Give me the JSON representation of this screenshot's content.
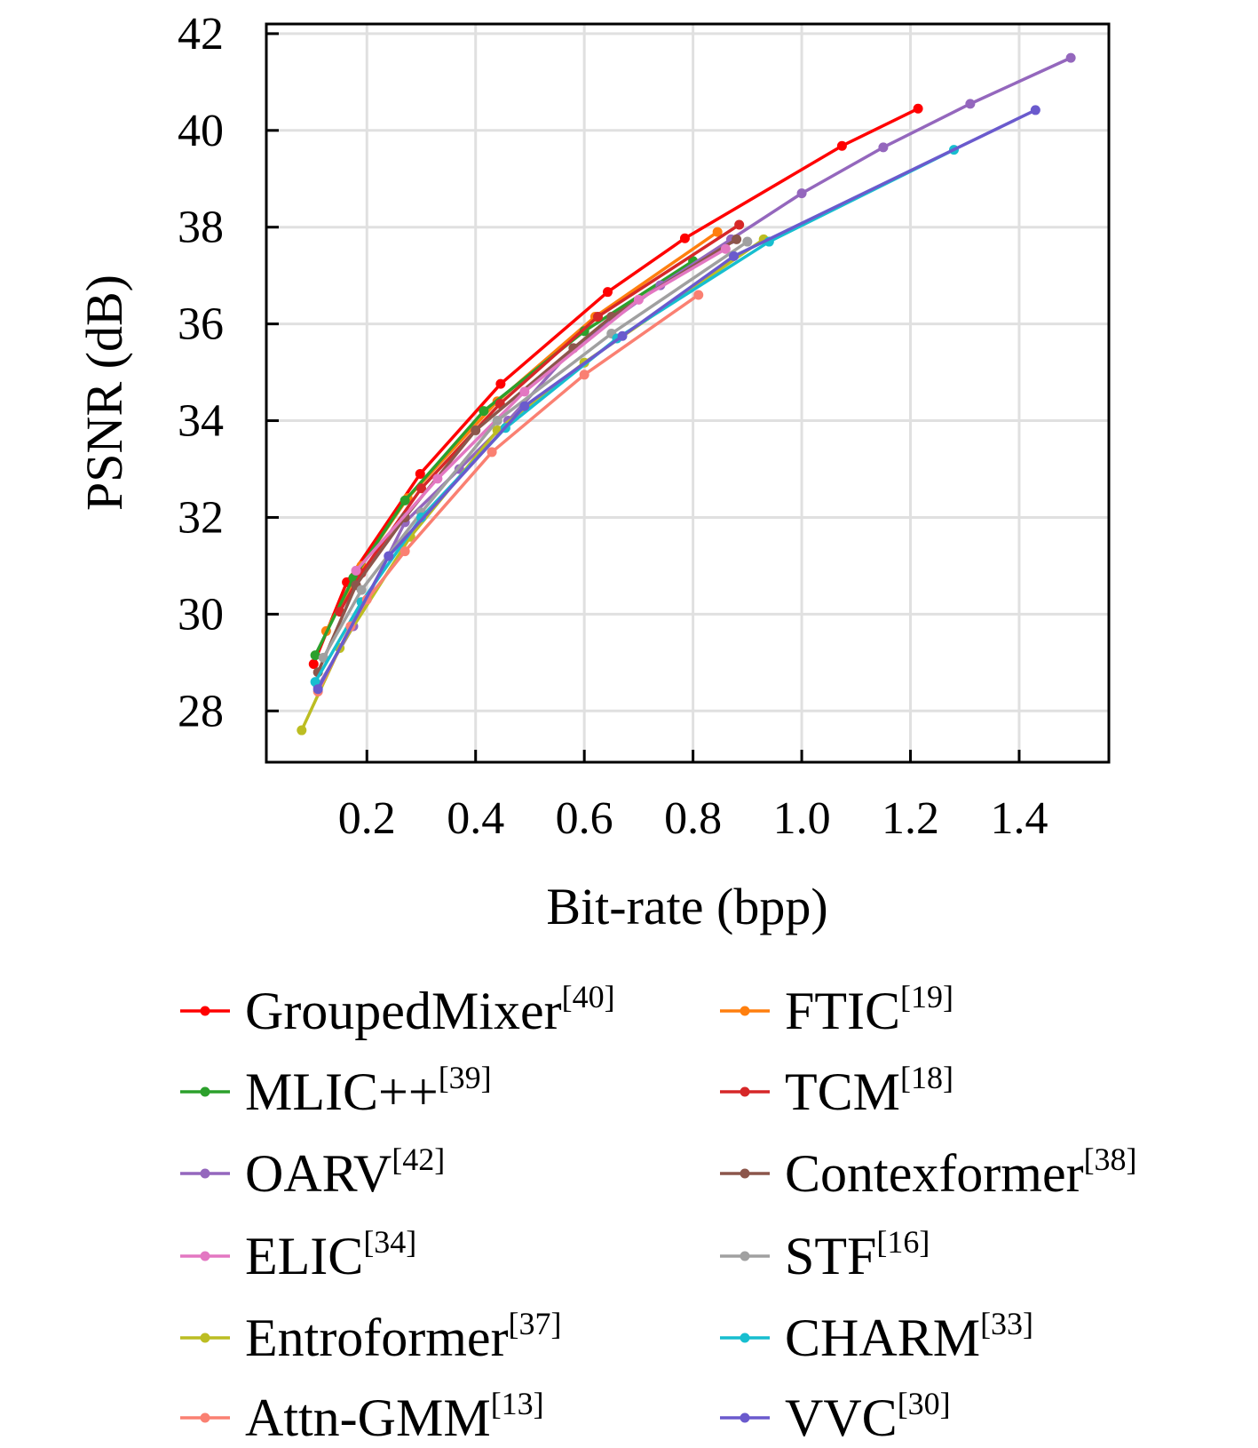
{
  "chart_data": {
    "type": "line",
    "xlabel": "Bit-rate (bpp)",
    "ylabel": "PSNR (dB)",
    "xlim": [
      0.015,
      1.565
    ],
    "ylim": [
      26.94,
      42.2
    ],
    "xticks": [
      "0.2",
      "0.4",
      "0.6",
      "0.8",
      "1.0",
      "1.2",
      "1.4"
    ],
    "yticks": [
      "28",
      "30",
      "32",
      "34",
      "36",
      "38",
      "40",
      "42"
    ],
    "grid": true,
    "legend_placement": "bottom",
    "series": [
      {
        "name": "GroupedMixer",
        "ref": "[40]",
        "color": "#ff0000",
        "x": [
          0.102,
          0.163,
          0.298,
          0.446,
          0.643,
          0.785,
          1.074,
          1.214
        ],
        "y": [
          28.97,
          30.66,
          32.9,
          34.76,
          36.66,
          37.77,
          39.68,
          40.45
        ]
      },
      {
        "name": "FTIC",
        "ref": "[19]",
        "color": "#ff7f0e",
        "x": [
          0.125,
          0.19,
          0.275,
          0.44,
          0.62,
          0.845
        ],
        "y": [
          29.65,
          31.0,
          32.4,
          34.4,
          36.15,
          37.9
        ]
      },
      {
        "name": "MLIC++",
        "ref": "[39]",
        "color": "#2ca02c",
        "x": [
          0.105,
          0.175,
          0.27,
          0.415,
          0.6,
          0.8
        ],
        "y": [
          29.15,
          30.75,
          32.35,
          34.2,
          35.85,
          37.3
        ]
      },
      {
        "name": "TCM",
        "ref": "[18]",
        "color": "#d62728",
        "x": [
          0.15,
          0.19,
          0.3,
          0.445,
          0.625,
          0.885
        ],
        "y": [
          30.05,
          30.85,
          32.6,
          34.35,
          36.15,
          38.05
        ]
      },
      {
        "name": "OARV",
        "ref": "[42]",
        "color": "#9467bd",
        "x": [
          0.11,
          0.175,
          0.27,
          0.37,
          0.46,
          0.58,
          0.74,
          0.87,
          1.0,
          1.15,
          1.31,
          1.495
        ],
        "y": [
          28.5,
          29.75,
          31.9,
          33.0,
          34.0,
          35.5,
          36.8,
          37.75,
          38.7,
          39.65,
          40.55,
          41.5
        ]
      },
      {
        "name": "Contexformer",
        "ref": "[38]",
        "color": "#8c564b",
        "x": [
          0.11,
          0.18,
          0.27,
          0.4,
          0.58,
          0.65,
          0.88
        ],
        "y": [
          28.8,
          30.6,
          32.0,
          33.8,
          35.5,
          36.15,
          37.75
        ]
      },
      {
        "name": "ELIC",
        "ref": "[34]",
        "color": "#e377c2",
        "x": [
          0.18,
          0.33,
          0.49,
          0.7,
          0.86
        ],
        "y": [
          30.9,
          32.8,
          34.6,
          36.5,
          37.55
        ]
      },
      {
        "name": "STF",
        "ref": "[16]",
        "color": "#a0a0a0",
        "x": [
          0.12,
          0.19,
          0.3,
          0.44,
          0.65,
          0.9
        ],
        "y": [
          29.1,
          30.5,
          32.1,
          34.0,
          35.8,
          37.7
        ]
      },
      {
        "name": "Entroformer",
        "ref": "[37]",
        "color": "#bcbd22",
        "x": [
          0.08,
          0.15,
          0.28,
          0.44,
          0.6,
          0.93
        ],
        "y": [
          27.6,
          29.3,
          31.6,
          33.8,
          35.2,
          37.75
        ]
      },
      {
        "name": "CHARM",
        "ref": "[33]",
        "color": "#17becf",
        "x": [
          0.105,
          0.19,
          0.3,
          0.455,
          0.66,
          0.94,
          1.28
        ],
        "y": [
          28.6,
          30.25,
          32.0,
          33.85,
          35.7,
          37.7,
          39.6
        ]
      },
      {
        "name": "Attn-GMM",
        "ref": "[13]",
        "color": "#fa8072",
        "x": [
          0.11,
          0.17,
          0.2,
          0.27,
          0.43,
          0.6,
          0.81
        ],
        "y": [
          28.4,
          29.75,
          30.3,
          31.3,
          33.35,
          34.95,
          36.6
        ]
      },
      {
        "name": "VVC",
        "ref": "[30]",
        "color": "#6a5acd",
        "x": [
          0.11,
          0.24,
          0.49,
          0.67,
          0.875,
          1.43
        ],
        "y": [
          28.45,
          31.2,
          34.3,
          35.75,
          37.4,
          40.42
        ]
      }
    ],
    "legend_order": [
      "GroupedMixer",
      "FTIC",
      "MLIC++",
      "TCM",
      "OARV",
      "Contexformer",
      "ELIC",
      "STF",
      "Entroformer",
      "CHARM",
      "Attn-GMM",
      "VVC"
    ]
  }
}
